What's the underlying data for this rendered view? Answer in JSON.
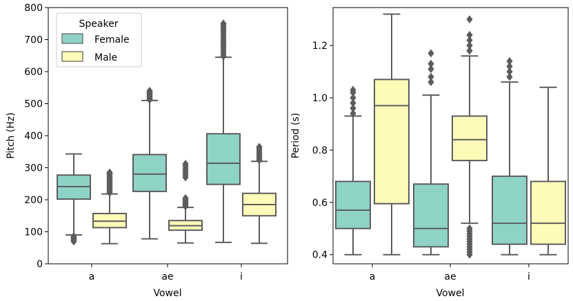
{
  "chart_data": [
    {
      "type": "box",
      "xlabel": "Vowel",
      "ylabel": "Pitch (Hz)",
      "ylim": [
        0,
        800
      ],
      "yticks": [
        0,
        100,
        200,
        300,
        400,
        500,
        600,
        700,
        800
      ],
      "categories": [
        "a",
        "ae",
        "i"
      ],
      "legend": {
        "title": "Speaker",
        "position": "top-left",
        "entries": [
          "Female",
          "Male"
        ]
      },
      "series": [
        {
          "name": "Female",
          "color": "#8fd3c7",
          "boxes": [
            {
              "category": "a",
              "whislo": 90,
              "q1": 202,
              "med": 241,
              "q3": 277,
              "whishi": 343,
              "fliers": [
                70,
                74,
                78,
                82,
                86
              ]
            },
            {
              "category": "ae",
              "whislo": 78,
              "q1": 226,
              "med": 280,
              "q3": 341,
              "whishi": 510,
              "fliers": [
                512,
                516,
                520,
                524,
                528,
                532,
                536,
                540
              ]
            },
            {
              "category": "i",
              "whislo": 67,
              "q1": 248,
              "med": 314,
              "q3": 406,
              "whishi": 645,
              "fliers": [
                648,
                655,
                662,
                669,
                676,
                683,
                690,
                697,
                704,
                711,
                718,
                725,
                732,
                739,
                746,
                750
              ]
            }
          ]
        },
        {
          "name": "Male",
          "color": "#fefbb9",
          "boxes": [
            {
              "category": "a",
              "whislo": 63,
              "q1": 113,
              "med": 133,
              "q3": 157,
              "whishi": 218,
              "fliers": [
                222,
                227,
                232,
                237,
                242,
                247,
                252,
                257,
                262,
                267,
                272,
                277,
                282,
                285
              ]
            },
            {
              "category": "ae",
              "whislo": 65,
              "q1": 105,
              "med": 119,
              "q3": 135,
              "whishi": 176,
              "fliers": [
                180,
                185,
                190,
                195,
                200,
                205,
                270,
                277,
                284,
                291,
                298,
                305,
                312
              ]
            },
            {
              "category": "i",
              "whislo": 64,
              "q1": 150,
              "med": 185,
              "q3": 220,
              "whishi": 320,
              "fliers": [
                324,
                330,
                336,
                342,
                348,
                354,
                360,
                365
              ]
            }
          ]
        }
      ]
    },
    {
      "type": "box",
      "xlabel": "Vowel",
      "ylabel": "Period (s)",
      "ylim": [
        0.365,
        1.345
      ],
      "yticks": [
        0.4,
        0.6,
        0.8,
        1.0,
        1.2
      ],
      "categories": [
        "a",
        "ae",
        "i"
      ],
      "series": [
        {
          "name": "Female",
          "color": "#8fd3c7",
          "boxes": [
            {
              "category": "a",
              "whislo": 0.4,
              "q1": 0.5,
              "med": 0.57,
              "q3": 0.68,
              "whishi": 0.93,
              "fliers": [
                0.94,
                0.96,
                0.98,
                1.0,
                1.02,
                1.03
              ]
            },
            {
              "category": "ae",
              "whislo": 0.4,
              "q1": 0.43,
              "med": 0.5,
              "q3": 0.67,
              "whishi": 1.01,
              "fliers": [
                1.06,
                1.08,
                1.11,
                1.13,
                1.17
              ]
            },
            {
              "category": "i",
              "whislo": 0.4,
              "q1": 0.44,
              "med": 0.52,
              "q3": 0.7,
              "whishi": 1.06,
              "fliers": [
                1.08,
                1.1,
                1.12,
                1.14
              ]
            }
          ]
        },
        {
          "name": "Male",
          "color": "#fefbb9",
          "boxes": [
            {
              "category": "a",
              "whislo": 0.4,
              "q1": 0.595,
              "med": 0.97,
              "q3": 1.07,
              "whishi": 1.32,
              "fliers": []
            },
            {
              "category": "ae",
              "whislo": 0.52,
              "q1": 0.76,
              "med": 0.84,
              "q3": 0.93,
              "whishi": 1.16,
              "fliers": [
                0.4,
                0.41,
                0.42,
                0.43,
                0.44,
                0.45,
                0.46,
                0.47,
                0.48,
                0.49,
                0.5,
                1.18,
                1.2,
                1.22,
                1.24,
                1.3
              ]
            },
            {
              "category": "i",
              "whislo": 0.4,
              "q1": 0.44,
              "med": 0.52,
              "q3": 0.68,
              "whishi": 1.04,
              "fliers": []
            }
          ]
        }
      ]
    }
  ]
}
